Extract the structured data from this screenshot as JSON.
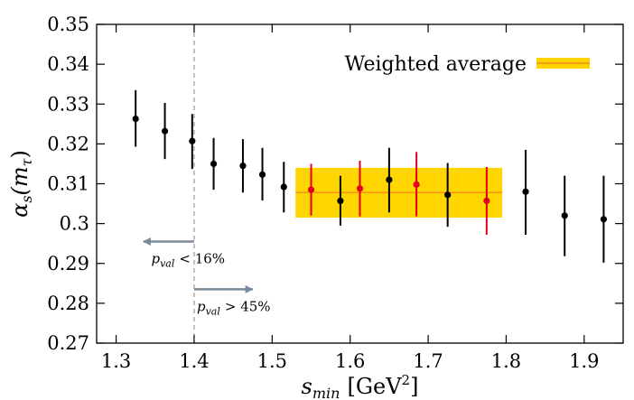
{
  "chart_data": {
    "type": "scatter",
    "xlabel": "s_min [GeV²]",
    "xlabel_parts": {
      "var": "s",
      "sub": "min",
      "unit": "[GeV",
      "sup": "2",
      "close": "]"
    },
    "ylabel": "α_s(m_τ)",
    "ylabel_parts": {
      "var": "α",
      "sub": "s",
      "arg_open": "(m",
      "arg_sub": "τ",
      "arg_close": ")"
    },
    "xlim": [
      1.275,
      1.95
    ],
    "ylim": [
      0.27,
      0.35
    ],
    "x_ticks": [
      1.3,
      1.4,
      1.5,
      1.6,
      1.7,
      1.8,
      1.9
    ],
    "x_tick_labels": [
      "1.3",
      "1.4",
      "1.5",
      "1.6",
      "1.7",
      "1.8",
      "1.9"
    ],
    "y_ticks": [
      0.27,
      0.28,
      0.29,
      0.3,
      0.31,
      0.32,
      0.33,
      0.34,
      0.35
    ],
    "y_tick_labels": [
      "0.27",
      "0.28",
      "0.29",
      "0.3",
      "0.31",
      "0.32",
      "0.33",
      "0.34",
      "0.35"
    ],
    "grid": false,
    "legend": {
      "label": "Weighted average",
      "placement": "top-right"
    },
    "series": [
      {
        "color": "#000000",
        "points": [
          {
            "x": 1.325,
            "y": 0.3263,
            "lo": 0.3193,
            "hi": 0.3335
          },
          {
            "x": 1.3625,
            "y": 0.3232,
            "lo": 0.3162,
            "hi": 0.3303
          },
          {
            "x": 1.3975,
            "y": 0.3207,
            "lo": 0.3137,
            "hi": 0.3275
          },
          {
            "x": 1.425,
            "y": 0.315,
            "lo": 0.3085,
            "hi": 0.3215
          },
          {
            "x": 1.4625,
            "y": 0.3145,
            "lo": 0.3078,
            "hi": 0.3212
          },
          {
            "x": 1.4875,
            "y": 0.3123,
            "lo": 0.3058,
            "hi": 0.319
          },
          {
            "x": 1.515,
            "y": 0.3092,
            "lo": 0.3028,
            "hi": 0.3155
          },
          {
            "x": 1.5875,
            "y": 0.3057,
            "lo": 0.2995,
            "hi": 0.312
          },
          {
            "x": 1.65,
            "y": 0.311,
            "lo": 0.3028,
            "hi": 0.319
          },
          {
            "x": 1.725,
            "y": 0.3072,
            "lo": 0.2992,
            "hi": 0.3152
          },
          {
            "x": 1.825,
            "y": 0.308,
            "lo": 0.2972,
            "hi": 0.3185
          },
          {
            "x": 1.875,
            "y": 0.302,
            "lo": 0.2918,
            "hi": 0.312
          },
          {
            "x": 1.925,
            "y": 0.3011,
            "lo": 0.2902,
            "hi": 0.312
          }
        ]
      },
      {
        "color": "#e0001b",
        "points": [
          {
            "x": 1.55,
            "y": 0.3085,
            "lo": 0.302,
            "hi": 0.315
          },
          {
            "x": 1.6125,
            "y": 0.3088,
            "lo": 0.3018,
            "hi": 0.3158
          },
          {
            "x": 1.685,
            "y": 0.3098,
            "lo": 0.3018,
            "hi": 0.318
          },
          {
            "x": 1.775,
            "y": 0.3057,
            "lo": 0.2972,
            "hi": 0.3142
          }
        ]
      }
    ],
    "weighted_average": {
      "x_range": [
        1.53,
        1.795
      ],
      "center": 0.3078,
      "band": [
        0.3015,
        0.314
      ],
      "band_color": "#ffd500",
      "line_color": "#f28c1c"
    },
    "cut_line_x": 1.4,
    "annotations": [
      {
        "id": "below",
        "x_from": 1.4,
        "x_to": 1.335,
        "y": 0.2955,
        "sym": "p",
        "sub": "val",
        "rel": "< 16%"
      },
      {
        "id": "above",
        "x_from": 1.4,
        "x_to": 1.475,
        "y": 0.2835,
        "sym": "p",
        "sub": "val",
        "rel": "> 45%"
      }
    ]
  }
}
